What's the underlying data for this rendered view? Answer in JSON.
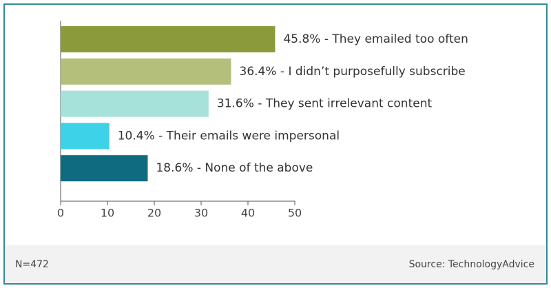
{
  "chart_data": {
    "type": "bar",
    "orientation": "horizontal",
    "values": [
      45.8,
      36.4,
      31.6,
      10.4,
      18.6
    ],
    "value_labels": [
      "45.8% - They emailed too often",
      "36.4% - I didn’t purposefully subscribe",
      "31.6% - They sent irrelevant content",
      "10.4% - Their emails were impersonal",
      "18.6% - None of the above"
    ],
    "colors": [
      "#8b9b3c",
      "#b5bf7c",
      "#a6e1da",
      "#3ed2e8",
      "#0f6b80"
    ],
    "xlim": [
      0,
      50
    ],
    "xticks": [
      0,
      10,
      20,
      30,
      40,
      50
    ],
    "note": "N=472",
    "source": "Source: TechnologyAdvice"
  }
}
